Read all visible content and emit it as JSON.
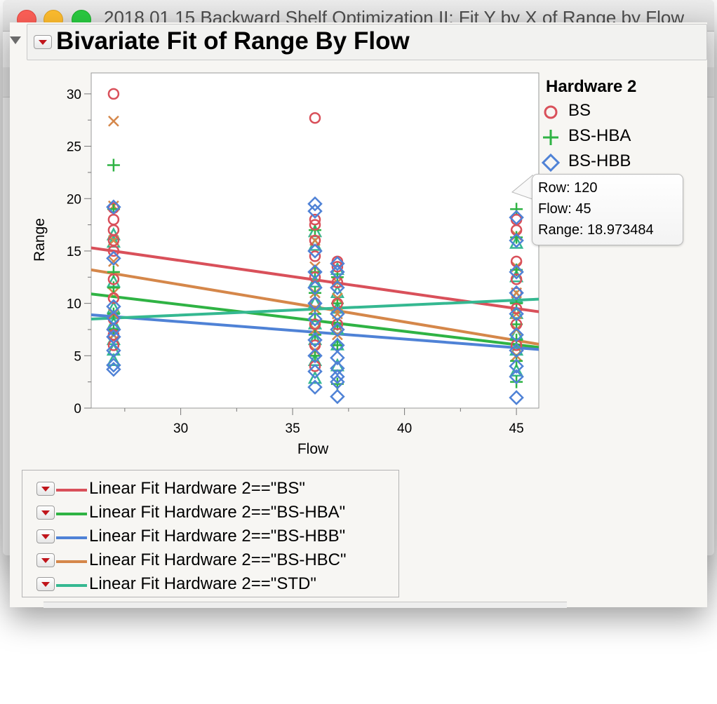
{
  "window": {
    "title": "2018 01 15 Backward Shelf Optimization II: Fit Y by X of Range by Flow"
  },
  "report": {
    "title": "Bivariate Fit of Range By Flow"
  },
  "colors": {
    "BS": "#d9505a",
    "BS-HBA": "#2fb344",
    "BS-HBB": "#4f82d6",
    "BS-HBC": "#d5874a",
    "STD": "#35b891"
  },
  "legend": {
    "title": "Hardware 2",
    "items": [
      {
        "label": "BS",
        "marker": "circle",
        "color": "#d9505a"
      },
      {
        "label": "BS-HBA",
        "marker": "plus",
        "color": "#2fb344"
      },
      {
        "label": "BS-HBB",
        "marker": "diamond",
        "color": "#4f82d6"
      }
    ]
  },
  "tooltip": {
    "row": "Row: 120",
    "flow": "Flow: 45",
    "range": "Range: 18.973484"
  },
  "chart_data": {
    "type": "scatter",
    "title": "",
    "xlabel": "Flow",
    "ylabel": "Range",
    "xlim": [
      26,
      46
    ],
    "ylim": [
      0,
      32
    ],
    "xticks": [
      30,
      35,
      40,
      45
    ],
    "yticks": [
      0,
      5,
      10,
      15,
      20,
      25,
      30
    ],
    "grid": false,
    "series": [
      {
        "name": "BS",
        "marker": "circle",
        "color": "#d9505a",
        "fit": {
          "x": [
            26,
            46
          ],
          "y": [
            15.3,
            9.2
          ]
        },
        "points": [
          [
            27,
            30
          ],
          [
            27,
            19.1
          ],
          [
            27,
            18
          ],
          [
            27,
            17
          ],
          [
            27,
            16
          ],
          [
            27,
            15
          ],
          [
            27,
            12.3
          ],
          [
            27,
            10.5
          ],
          [
            27,
            8.5
          ],
          [
            27,
            7
          ],
          [
            27,
            6
          ],
          [
            36,
            27.7
          ],
          [
            36,
            18
          ],
          [
            36,
            17.5
          ],
          [
            36,
            16
          ],
          [
            36,
            14.5
          ],
          [
            36,
            12.5
          ],
          [
            36,
            10
          ],
          [
            36,
            8
          ],
          [
            36,
            6
          ],
          [
            36,
            4
          ],
          [
            37,
            14
          ],
          [
            37,
            13.5
          ],
          [
            37,
            12
          ],
          [
            37,
            10
          ],
          [
            37,
            8
          ],
          [
            45,
            18
          ],
          [
            45,
            17
          ],
          [
            45,
            14
          ],
          [
            45,
            12.3
          ],
          [
            45,
            11
          ],
          [
            45,
            9.5
          ],
          [
            45,
            8
          ],
          [
            45,
            6
          ]
        ]
      },
      {
        "name": "BS-HBA",
        "marker": "plus",
        "color": "#2fb344",
        "fit": {
          "x": [
            26,
            46
          ],
          "y": [
            10.9,
            5.8
          ]
        },
        "points": [
          [
            27,
            23.2
          ],
          [
            27,
            19
          ],
          [
            27,
            13
          ],
          [
            27,
            11.5
          ],
          [
            27,
            9
          ],
          [
            27,
            7.5
          ],
          [
            36,
            17
          ],
          [
            36,
            13
          ],
          [
            36,
            11
          ],
          [
            36,
            9
          ],
          [
            36,
            7
          ],
          [
            36,
            5
          ],
          [
            37,
            12.5
          ],
          [
            37,
            10
          ],
          [
            37,
            8
          ],
          [
            37,
            6
          ],
          [
            37,
            2.3
          ],
          [
            45,
            19
          ],
          [
            45,
            16.3
          ],
          [
            45,
            13.2
          ],
          [
            45,
            10
          ],
          [
            45,
            8
          ],
          [
            45,
            6.5
          ],
          [
            45,
            4.5
          ],
          [
            45,
            2.5
          ]
        ]
      },
      {
        "name": "BS-HBB",
        "marker": "diamond",
        "color": "#4f82d6",
        "fit": {
          "x": [
            26,
            46
          ],
          "y": [
            8.9,
            5.6
          ]
        },
        "points": [
          [
            27,
            19.2
          ],
          [
            27,
            14.3
          ],
          [
            27,
            9.7
          ],
          [
            27,
            8.6
          ],
          [
            27,
            7.5
          ],
          [
            27,
            6.8
          ],
          [
            27,
            5.5
          ],
          [
            27,
            4.1
          ],
          [
            27,
            3.7
          ],
          [
            36,
            19.5
          ],
          [
            36,
            18.8
          ],
          [
            36,
            15
          ],
          [
            36,
            13
          ],
          [
            36,
            11.5
          ],
          [
            36,
            10
          ],
          [
            36,
            8.5
          ],
          [
            36,
            6.5
          ],
          [
            36,
            5
          ],
          [
            36,
            3.5
          ],
          [
            36,
            2
          ],
          [
            37,
            13.8
          ],
          [
            37,
            13
          ],
          [
            37,
            11.5
          ],
          [
            37,
            9
          ],
          [
            37,
            7.5
          ],
          [
            37,
            6
          ],
          [
            37,
            4.8
          ],
          [
            37,
            3.8
          ],
          [
            37,
            3
          ],
          [
            37,
            2.5
          ],
          [
            37,
            1.1
          ],
          [
            45,
            18.2
          ],
          [
            45,
            16
          ],
          [
            45,
            13
          ],
          [
            45,
            11
          ],
          [
            45,
            9
          ],
          [
            45,
            7
          ],
          [
            45,
            5.5
          ],
          [
            45,
            4
          ],
          [
            45,
            3
          ],
          [
            45,
            1
          ]
        ]
      },
      {
        "name": "BS-HBC",
        "marker": "x",
        "color": "#d5874a",
        "fit": {
          "x": [
            26,
            46
          ],
          "y": [
            13.2,
            6.1
          ]
        },
        "points": [
          [
            27,
            27.4
          ],
          [
            27,
            19.3
          ],
          [
            27,
            16
          ],
          [
            27,
            14
          ],
          [
            27,
            11
          ],
          [
            27,
            9
          ],
          [
            27,
            7
          ],
          [
            36,
            16
          ],
          [
            36,
            13.5
          ],
          [
            36,
            11
          ],
          [
            36,
            9.5
          ],
          [
            36,
            7.5
          ],
          [
            36,
            5.5
          ],
          [
            37,
            12
          ],
          [
            37,
            10.5
          ],
          [
            37,
            9
          ],
          [
            37,
            7
          ],
          [
            45,
            16.5
          ],
          [
            45,
            13.5
          ],
          [
            45,
            11
          ],
          [
            45,
            9
          ],
          [
            45,
            7.5
          ],
          [
            45,
            5
          ]
        ]
      },
      {
        "name": "STD",
        "marker": "triangle",
        "color": "#35b891",
        "fit": {
          "x": [
            26,
            46
          ],
          "y": [
            8.5,
            10.4
          ]
        },
        "points": [
          [
            27,
            16.5
          ],
          [
            27,
            15.8
          ],
          [
            27,
            12
          ],
          [
            27,
            9.5
          ],
          [
            27,
            8
          ],
          [
            27,
            6.5
          ],
          [
            27,
            5.5
          ],
          [
            27,
            4.5
          ],
          [
            36,
            16.8
          ],
          [
            36,
            15.5
          ],
          [
            36,
            12
          ],
          [
            36,
            10
          ],
          [
            36,
            8
          ],
          [
            36,
            6.5
          ],
          [
            36,
            4.5
          ],
          [
            36,
            2.8
          ],
          [
            37,
            13.2
          ],
          [
            37,
            11
          ],
          [
            37,
            9.5
          ],
          [
            37,
            7.5
          ],
          [
            37,
            6
          ],
          [
            37,
            4
          ],
          [
            45,
            15.7
          ],
          [
            45,
            12.5
          ],
          [
            45,
            10.5
          ],
          [
            45,
            9
          ],
          [
            45,
            7
          ],
          [
            45,
            5.5
          ],
          [
            45,
            3.5
          ]
        ]
      }
    ]
  },
  "fits": [
    {
      "label": "Linear Fit Hardware 2==\"BS\"",
      "color": "#d9505a"
    },
    {
      "label": "Linear Fit Hardware 2==\"BS-HBA\"",
      "color": "#2fb344"
    },
    {
      "label": "Linear Fit Hardware 2==\"BS-HBB\"",
      "color": "#4f82d6"
    },
    {
      "label": "Linear Fit Hardware 2==\"BS-HBC\"",
      "color": "#d5874a"
    },
    {
      "label": "Linear Fit Hardware 2==\"STD\"",
      "color": "#35b891"
    }
  ]
}
